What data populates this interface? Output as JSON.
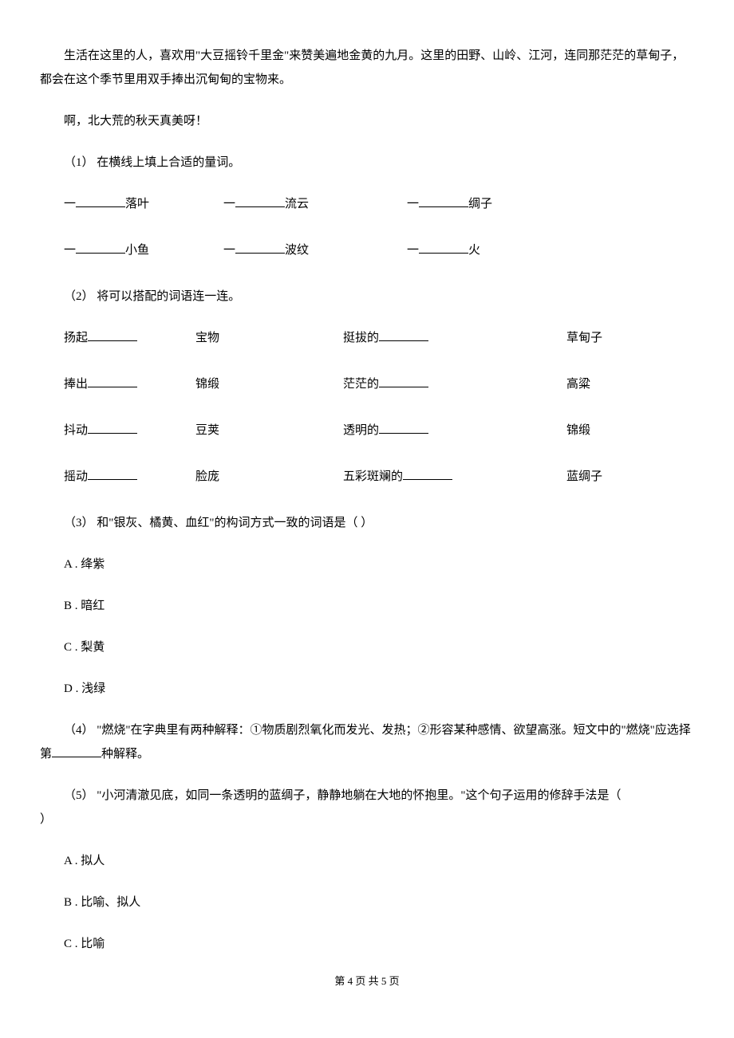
{
  "paragraphs": {
    "p1": "生活在这里的人，喜欢用\"大豆摇铃千里金\"来赞美遍地金黄的九月。这里的田野、山岭、江河，连同那茫茫的草甸子，都会在这个季节里用双手捧出沉甸甸的宝物来。",
    "p2": "啊，北大荒的秋天真美呀！"
  },
  "q1": {
    "prompt": "（1） 在横线上填上合适的量词。",
    "row1": {
      "a_pre": "一",
      "a_post": "落叶",
      "b_pre": "一",
      "b_post": "流云",
      "c_pre": "一",
      "c_post": "绸子"
    },
    "row2": {
      "a_pre": "一",
      "a_post": "小鱼",
      "b_pre": "一",
      "b_post": "波纹",
      "c_pre": "一",
      "c_post": "火"
    }
  },
  "q2": {
    "prompt": "（2） 将可以搭配的词语连一连。",
    "rows": [
      {
        "c1": "扬起",
        "c2": "宝物",
        "c3": "挺拔的",
        "c4": "草甸子"
      },
      {
        "c1": "捧出",
        "c2": "锦缎",
        "c3": "茫茫的",
        "c4": "高粱"
      },
      {
        "c1": "抖动",
        "c2": "豆荚",
        "c3": "透明的",
        "c4": "锦缎"
      },
      {
        "c1": "摇动",
        "c2": "脸庞",
        "c3": "五彩斑斓的",
        "c4": "蓝绸子"
      }
    ]
  },
  "q3": {
    "prompt": "（3） 和\"银灰、橘黄、血红\"的构词方式一致的词语是（     ）",
    "opts": {
      "a": "A .  绛紫",
      "b": "B .  暗红",
      "c": "C .  梨黄",
      "d": "D .  浅绿"
    }
  },
  "q4": {
    "pre": "（4） \"燃烧\"在字典里有两种解释：①物质剧烈氧化而发光、发热；②形容某种感情、欲望高涨。短文中的\"燃烧\"应选择第",
    "post": "种解释。"
  },
  "q5": {
    "line1": "（5） \"小河清澈见底，如同一条透明的蓝绸子，静静地躺在大地的怀抱里。\"这个句子运用的修辞手法是（",
    "line2": "）",
    "opts": {
      "a": "A .  拟人",
      "b": "B .  比喻、拟人",
      "c": "C .  比喻"
    }
  },
  "footer": "第 4 页 共 5 页"
}
